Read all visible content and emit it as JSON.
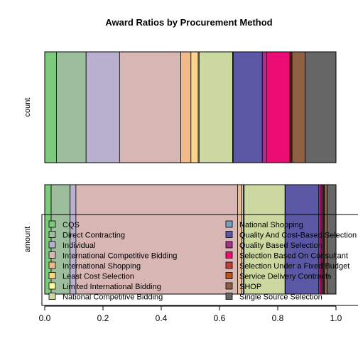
{
  "chart_data": {
    "type": "bar",
    "orientation": "horizontal-stacked-proportion",
    "title": "Award Ratios by Procurement Method",
    "xlim": [
      0,
      1
    ],
    "x_ticks": [
      "0.0",
      "0.2",
      "0.4",
      "0.6",
      "0.8",
      "1.0"
    ],
    "grid": false,
    "legend_position": "overlay-bottom",
    "categories": [
      "count",
      "amount"
    ],
    "series": [
      {
        "name": "CQS",
        "color": "#7fc97f",
        "values": [
          0.04,
          0.022
        ]
      },
      {
        "name": "Direct Contracting",
        "color": "#9dbe9d",
        "values": [
          0.102,
          0.065
        ]
      },
      {
        "name": "Individual",
        "color": "#b9b0d0",
        "values": [
          0.115,
          0.02
        ]
      },
      {
        "name": "International Competitive Bidding",
        "color": "#d7b6b3",
        "values": [
          0.21,
          0.555
        ]
      },
      {
        "name": "International Shopping",
        "color": "#f2b98a",
        "values": [
          0.035,
          0.015
        ]
      },
      {
        "name": "Least Cost Selection",
        "color": "#fbd68a",
        "values": [
          0.025,
          0.005
        ]
      },
      {
        "name": "Limited International Bidding",
        "color": "#fffd9e",
        "values": [
          0.003,
          0.003
        ]
      },
      {
        "name": "National Competitive Bidding",
        "color": "#cbd89f",
        "values": [
          0.115,
          0.14
        ]
      },
      {
        "name": "National Shopping",
        "color": "#79a0c0",
        "values": [
          0.002,
          0.001
        ]
      },
      {
        "name": "Quality And Cost-Based Selection",
        "color": "#5b58a5",
        "values": [
          0.1,
          0.115
        ]
      },
      {
        "name": "Quality Based Selection",
        "color": "#a43286",
        "values": [
          0.015,
          0.008
        ]
      },
      {
        "name": "Selection Based On Consultant",
        "color": "#ec0d74",
        "values": [
          0.08,
          0.006
        ]
      },
      {
        "name": "Selection Under a Fixed Budget",
        "color": "#c83e35",
        "values": [
          0.004,
          0.003
        ]
      },
      {
        "name": "Service Delivery Contracts",
        "color": "#b85522",
        "values": [
          0.003,
          0.002
        ]
      },
      {
        "name": "SHOP",
        "color": "#8f6044",
        "values": [
          0.045,
          0.01
        ]
      },
      {
        "name": "Single Source Selection",
        "color": "#666666",
        "values": [
          0.106,
          0.03
        ]
      }
    ]
  }
}
